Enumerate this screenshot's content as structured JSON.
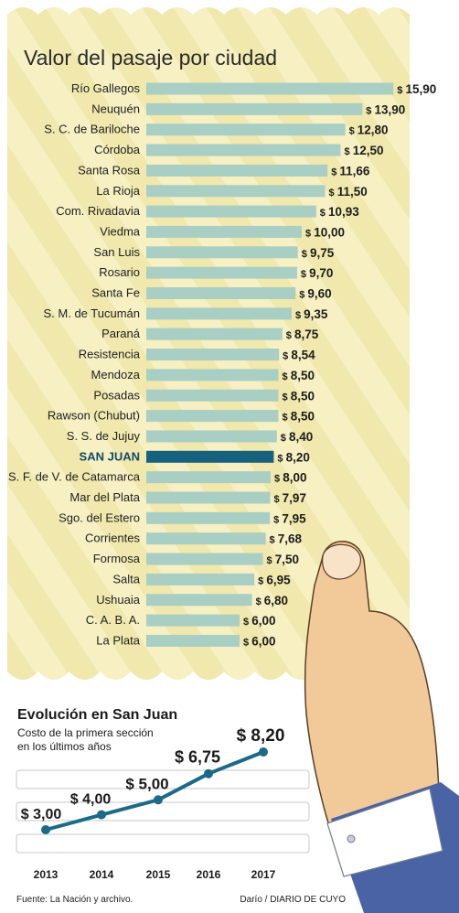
{
  "colors": {
    "ticket": "#f6f0c2",
    "stripe": "#ebe19d",
    "bar": "#a9cec4",
    "highlight_bar": "#17607e",
    "line": "#1d6a88",
    "hand": "#f2ca9a",
    "sleeve": "#4963a4"
  },
  "chart_data": [
    {
      "type": "bar",
      "orientation": "horizontal",
      "title": "Valor del pasaje por ciudad",
      "currency_prefix": "$",
      "highlight": "SAN JUAN",
      "categories": [
        "Río Gallegos",
        "Neuquén",
        "S. C. de Bariloche",
        "Córdoba",
        "Santa Rosa",
        "La Rioja",
        "Com. Rivadavia",
        "Viedma",
        "San Luis",
        "Rosario",
        "Santa Fe",
        "S. M. de Tucumán",
        "Paraná",
        "Resistencia",
        "Mendoza",
        "Posadas",
        "Rawson (Chubut)",
        "S. S. de Jujuy",
        "SAN JUAN",
        "S. F. de V. de Catamarca",
        "Mar del Plata",
        "Sgo. del Estero",
        "Corrientes",
        "Formosa",
        "Salta",
        "Ushuaia",
        "C. A. B. A.",
        "La Plata"
      ],
      "values": [
        15.9,
        13.9,
        12.8,
        12.5,
        11.66,
        11.5,
        10.93,
        10.0,
        9.75,
        9.7,
        9.6,
        9.35,
        8.75,
        8.54,
        8.5,
        8.5,
        8.5,
        8.4,
        8.2,
        8.0,
        7.97,
        7.95,
        7.68,
        7.5,
        6.95,
        6.8,
        6.0,
        6.0
      ],
      "labels": [
        "15,90",
        "13,90",
        "12,80",
        "12,50",
        "11,66",
        "11,50",
        "10,93",
        "10,00",
        "9,75",
        "9,70",
        "9,60",
        "9,35",
        "8,75",
        "8,54",
        "8,50",
        "8,50",
        "8,50",
        "8,40",
        "8,20",
        "8,00",
        "7,97",
        "7,95",
        "7,68",
        "7,50",
        "6,95",
        "6,80",
        "6,00",
        "6,00"
      ]
    },
    {
      "type": "line",
      "title": "Evolución en San Juan",
      "subtitle": "Costo de la primera sección en los últimos años",
      "x": [
        "2013",
        "2014",
        "2015",
        "2016",
        "2017"
      ],
      "values": [
        3.0,
        4.0,
        5.0,
        6.75,
        8.2
      ],
      "labels": [
        "$ 3,00",
        "$ 4,00",
        "$ 5,00",
        "$ 6,75",
        "$ 8,20"
      ],
      "grid": true
    }
  ],
  "footer": {
    "source": "Fuente: La Nación y archivo.",
    "credit": "Darío / DIARIO DE CUYO"
  }
}
